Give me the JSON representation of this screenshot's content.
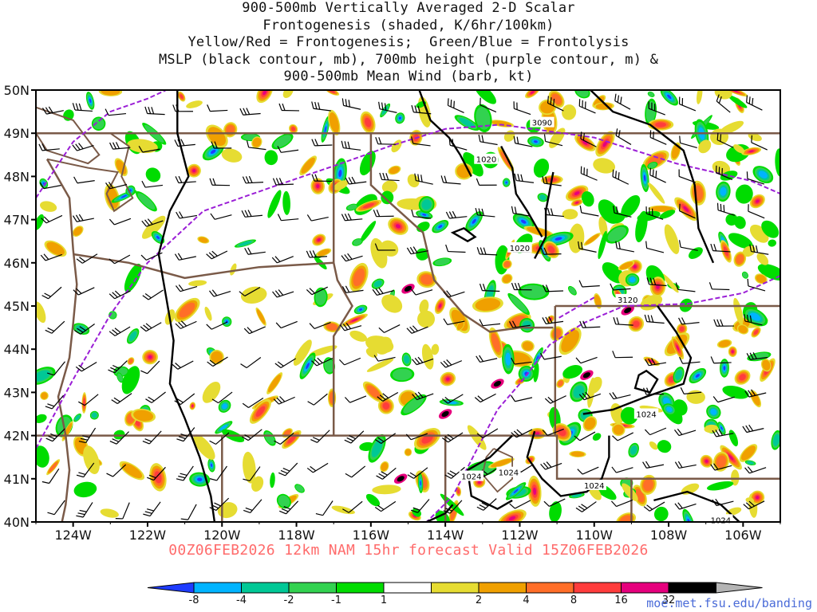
{
  "title": {
    "lines": [
      "900-500mb Vertically Averaged 2-D Scalar",
      "Frontogenesis (shaded, K/6hr/100km)",
      "Yellow/Red = Frontogenesis;  Green/Blue = Frontolysis",
      "MSLP (black contour, mb), 700mb height (purple contour, m) &",
      "900-500mb Mean Wind (barb, kt)"
    ]
  },
  "footer": {
    "valid_text": "00Z06FEB2026 12km NAM 15hr forecast Valid 15Z06FEB2026"
  },
  "source": {
    "url_text": "moe.met.fsu.edu/banding"
  },
  "map": {
    "lat_labels": [
      "50N",
      "49N",
      "48N",
      "47N",
      "46N",
      "45N",
      "44N",
      "43N",
      "42N",
      "41N",
      "40N"
    ],
    "lon_labels": [
      "124W",
      "122W",
      "120W",
      "118W",
      "116W",
      "114W",
      "112W",
      "110W",
      "108W",
      "106W"
    ],
    "lat_range": [
      40,
      50
    ],
    "lon_range": [
      -125,
      -105
    ],
    "contour_labels": {
      "mslp": [
        "1020",
        "1020",
        "1024",
        "1024",
        "1024",
        "1024",
        "1024"
      ],
      "height_700mb": [
        "3090",
        "3120"
      ]
    },
    "colors": {
      "mslp_contour": "#000000",
      "height_contour": "#9b1fd6",
      "state_border": "#7a5a48",
      "wind_barb": "#000000"
    }
  },
  "colorbar": {
    "units": "K/6hr/100km",
    "tick_labels": [
      "-8",
      "-4",
      "-2",
      "-1",
      "1",
      "2",
      "4",
      "8",
      "16",
      "32"
    ],
    "colors": [
      "#1e3cff",
      "#00b4ff",
      "#00c896",
      "#32d250",
      "#00dc00",
      "#ffffff",
      "#e6dc32",
      "#f0a000",
      "#ff6e28",
      "#ff3c3c",
      "#e6007d",
      "#000000",
      "#b4b4b4"
    ]
  }
}
